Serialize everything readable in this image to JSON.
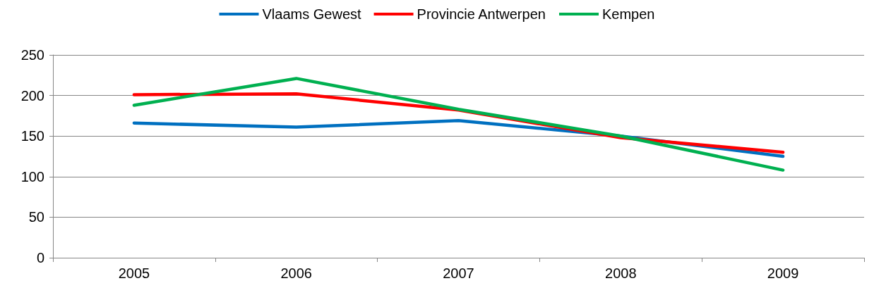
{
  "chart_data": {
    "type": "line",
    "categories": [
      "2005",
      "2006",
      "2007",
      "2008",
      "2009"
    ],
    "series": [
      {
        "name": "Vlaams Gewest",
        "color": "#0070c0",
        "values": [
          166,
          161,
          169,
          150,
          125
        ]
      },
      {
        "name": "Provincie Antwerpen",
        "color": "#ff0000",
        "values": [
          201,
          202,
          182,
          148,
          130
        ]
      },
      {
        "name": "Kempen",
        "color": "#00b050",
        "values": [
          188,
          221,
          183,
          150,
          108
        ]
      }
    ],
    "ylim": [
      0,
      250
    ],
    "yticks": [
      0,
      50,
      100,
      150,
      200,
      250
    ],
    "grid": "y",
    "legend": "top",
    "marker": "none",
    "line_style": "solid"
  }
}
